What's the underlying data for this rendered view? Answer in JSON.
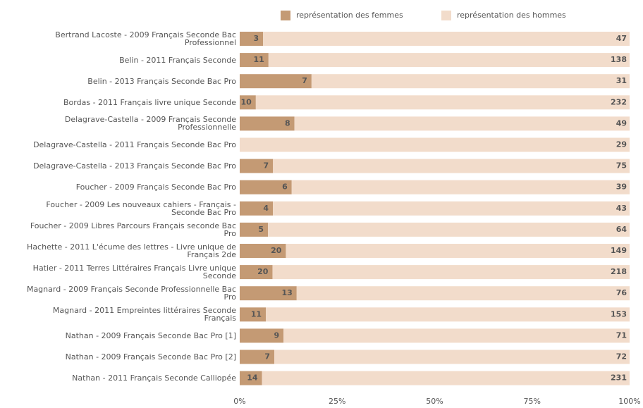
{
  "chart_data": {
    "type": "bar",
    "orientation": "horizontal",
    "stacked": "percent",
    "categories": [
      "Bertrand Lacoste - 2009 Français Seconde Bac Professionnel",
      "Belin - 2011 Français Seconde",
      "Belin - 2013 Français Seconde Bac Pro",
      "Bordas - 2011 Français livre unique Seconde",
      "Delagrave-Castella - 2009  Français Seconde Professionnelle",
      "Delagrave-Castella - 2011 Français Seconde Bac Pro",
      "Delagrave-Castella - 2013 Français Seconde Bac Pro",
      "Foucher - 2009  Français Seconde Bac Pro",
      "Foucher - 2009 Les nouveaux cahiers - Français - Seconde Bac Pro",
      "Foucher - 2009 Libres Parcours Français seconde Bac Pro",
      "Hachette - 2011 L'écume des lettres - Livre unique de Français 2de",
      "Hatier - 2011 Terres Littéraires Français Livre unique Seconde",
      "Magnard - 2009 Français Seconde Professionnelle Bac Pro",
      "Magnard - 2011 Empreintes littéraires Seconde Français",
      "Nathan - 2009 Français Seconde Bac Pro [1]",
      "Nathan - 2009 Français Seconde Bac Pro [2]",
      "Nathan - 2011 Français Seconde Calliopée"
    ],
    "series": [
      {
        "name": "représentation des femmes",
        "color": "#c49a74",
        "values": [
          3,
          11,
          7,
          10,
          8,
          0,
          7,
          6,
          4,
          5,
          20,
          20,
          13,
          11,
          9,
          7,
          14
        ]
      },
      {
        "name": "représentation des hommes",
        "color": "#f2dccb",
        "values": [
          47,
          138,
          31,
          232,
          49,
          29,
          75,
          39,
          43,
          64,
          149,
          218,
          76,
          153,
          71,
          72,
          231
        ]
      }
    ],
    "xlim": [
      0,
      100
    ],
    "xticks": [
      {
        "value": 0,
        "label": "0%"
      },
      {
        "value": 25,
        "label": "25%"
      },
      {
        "value": 50,
        "label": "50%"
      },
      {
        "value": 75,
        "label": "75%"
      },
      {
        "value": 100,
        "label": "100%"
      }
    ],
    "legend": "top"
  }
}
